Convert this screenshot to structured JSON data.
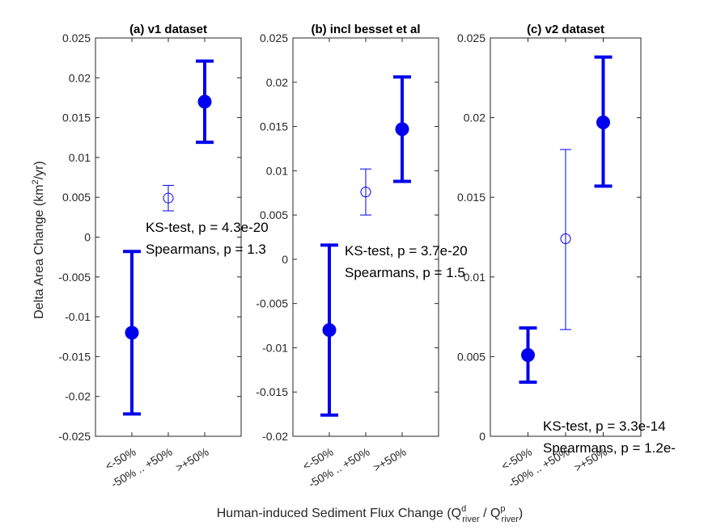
{
  "figure": {
    "ylabel_main": "Delta Area Change (km",
    "ylabel_sup": "2",
    "ylabel_tail": "/yr)",
    "xlabel_main": "Human-induced Sediment Flux Change (Q",
    "xlabel_sup1": "d",
    "xlabel_sub1": "river",
    "xlabel_mid": " / Q",
    "xlabel_sup2": "p",
    "xlabel_sub2": "river",
    "xlabel_tail": ")"
  },
  "chart_data": [
    {
      "type": "errorbar",
      "title": "(a) v1 dataset",
      "categories": [
        "<-50%",
        "-50% .. +50%",
        ">+50%"
      ],
      "ylim": [
        -0.025,
        0.025
      ],
      "yticks": [
        "-0.025",
        "-0.02",
        "-0.015",
        "-0.01",
        "-0.005",
        "0",
        "0.005",
        "0.01",
        "0.015",
        "0.02",
        "0.025"
      ],
      "points": [
        {
          "x": "<-50%",
          "y": -0.012,
          "low": -0.0222,
          "high": -0.0018,
          "filled": true
        },
        {
          "x": "-50% .. +50%",
          "y": 0.0049,
          "low": 0.0033,
          "high": 0.0065,
          "filled": false
        },
        {
          "x": ">+50%",
          "y": 0.017,
          "low": 0.0119,
          "high": 0.0221,
          "filled": true
        }
      ],
      "annotations": [
        "KS-test, p =  4.3e-20",
        "Spearmans, p =  1.3"
      ],
      "color": "#0000ee"
    },
    {
      "type": "errorbar",
      "title": "(b) incl besset et al",
      "categories": [
        "<-50%",
        "-50% .. +50%",
        ">+50%"
      ],
      "ylim": [
        -0.02,
        0.025
      ],
      "yticks": [
        "-0.02",
        "-0.015",
        "-0.01",
        "-0.005",
        "0",
        "0.005",
        "0.01",
        "0.015",
        "0.02",
        "0.025"
      ],
      "points": [
        {
          "x": "<-50%",
          "y": -0.008,
          "low": -0.0176,
          "high": 0.0016,
          "filled": true
        },
        {
          "x": "-50% .. +50%",
          "y": 0.0076,
          "low": 0.005,
          "high": 0.0102,
          "filled": false
        },
        {
          "x": ">+50%",
          "y": 0.0147,
          "low": 0.0088,
          "high": 0.0206,
          "filled": true
        }
      ],
      "annotations": [
        "KS-test, p =  3.7e-20",
        "Spearmans, p =  1.5"
      ],
      "color": "#0000ee"
    },
    {
      "type": "errorbar",
      "title": "(c) v2 dataset",
      "categories": [
        "<-50%",
        "-50% .. +50%",
        ">+50%"
      ],
      "ylim": [
        0,
        0.025
      ],
      "yticks": [
        "0",
        "0.005",
        "0.01",
        "0.015",
        "0.02",
        "0.025"
      ],
      "points": [
        {
          "x": "<-50%",
          "y": 0.0051,
          "low": 0.0034,
          "high": 0.0068,
          "filled": true
        },
        {
          "x": "-50% .. +50%",
          "y": 0.0124,
          "low": 0.0067,
          "high": 0.018,
          "filled": false
        },
        {
          "x": ">+50%",
          "y": 0.0197,
          "low": 0.0157,
          "high": 0.0238,
          "filled": true
        }
      ],
      "annotations": [
        "KS-test, p =  3.3e-14",
        "Spearmans, p =  1.2e-"
      ],
      "color": "#0000ee"
    }
  ]
}
